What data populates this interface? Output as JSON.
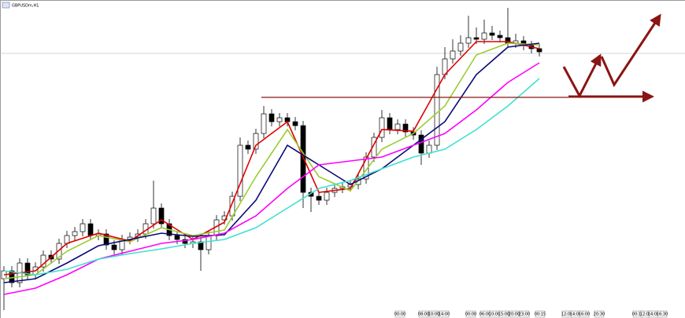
{
  "chart_data": {
    "type": "candlestick",
    "title": "GBPUSDm,H1",
    "open": [
      50,
      60,
      45,
      70,
      55,
      65,
      80,
      75,
      95,
      105,
      110,
      120,
      105,
      107,
      93,
      87,
      100,
      103,
      107,
      120,
      140,
      120,
      105,
      100,
      95,
      97,
      87,
      105,
      125,
      130,
      155,
      220,
      215,
      235,
      260,
      250,
      255,
      250,
      245,
      160,
      155,
      150,
      160,
      165,
      167,
      170,
      177,
      205,
      230,
      255,
      240,
      247,
      237,
      233,
      210,
      220,
      310,
      330,
      340,
      350,
      357,
      355,
      363,
      360,
      357,
      350,
      353,
      347,
      343
    ],
    "high": [
      66,
      66,
      76,
      76,
      71,
      86,
      86,
      101,
      111,
      116,
      126,
      126,
      113,
      113,
      99,
      106,
      109,
      113,
      126,
      175,
      146,
      126,
      111,
      106,
      103,
      103,
      111,
      131,
      136,
      161,
      230,
      226,
      241,
      270,
      266,
      261,
      261,
      256,
      251,
      166,
      161,
      166,
      171,
      173,
      176,
      183,
      211,
      236,
      265,
      261,
      253,
      253,
      243,
      239,
      226,
      320,
      345,
      355,
      360,
      385,
      370,
      380,
      372,
      366,
      395,
      362,
      359,
      353,
      349
    ],
    "low": [
      10,
      39,
      39,
      49,
      49,
      59,
      69,
      69,
      89,
      99,
      104,
      99,
      99,
      87,
      81,
      81,
      94,
      97,
      101,
      114,
      114,
      99,
      94,
      89,
      89,
      60,
      81,
      99,
      119,
      124,
      149,
      209,
      209,
      229,
      244,
      244,
      244,
      239,
      140,
      135,
      144,
      144,
      154,
      159,
      161,
      164,
      171,
      199,
      224,
      234,
      234,
      231,
      227,
      195,
      204,
      214,
      304,
      324,
      334,
      344,
      349,
      349,
      354,
      351,
      344,
      344,
      341,
      337,
      333
    ],
    "close": [
      60,
      45,
      70,
      55,
      65,
      80,
      75,
      95,
      105,
      110,
      120,
      105,
      107,
      93,
      87,
      100,
      103,
      107,
      120,
      140,
      120,
      105,
      100,
      95,
      97,
      87,
      105,
      125,
      130,
      155,
      220,
      215,
      235,
      260,
      250,
      255,
      250,
      245,
      160,
      155,
      150,
      160,
      165,
      167,
      170,
      177,
      205,
      230,
      255,
      240,
      247,
      237,
      233,
      210,
      220,
      310,
      330,
      340,
      350,
      357,
      355,
      363,
      360,
      357,
      350,
      353,
      347,
      343,
      339
    ],
    "series": [
      {
        "color": "#e00000",
        "x": [
          0,
          4,
          8,
          12,
          16,
          20,
          24,
          28,
          32,
          36,
          40,
          44,
          48,
          52,
          56,
          60,
          64,
          68
        ],
        "values": [
          55,
          60,
          95,
          108,
          98,
          125,
          100,
          122,
          220,
          250,
          160,
          165,
          240,
          238,
          310,
          352,
          352,
          343
        ]
      },
      {
        "color": "#9acd32",
        "x": [
          0,
          4,
          8,
          12,
          16,
          20,
          24,
          28,
          32,
          36,
          40,
          44,
          48,
          52,
          56,
          60,
          64,
          68
        ],
        "values": [
          50,
          55,
          85,
          105,
          97,
          115,
          105,
          112,
          180,
          240,
          180,
          162,
          215,
          235,
          270,
          335,
          350,
          348
        ]
      },
      {
        "color": "#0a0a78",
        "x": [
          0,
          4,
          8,
          12,
          16,
          20,
          24,
          28,
          32,
          36,
          40,
          44,
          48,
          52,
          56,
          60,
          64,
          68
        ],
        "values": [
          45,
          50,
          70,
          92,
          100,
          108,
          104,
          106,
          150,
          220,
          195,
          170,
          190,
          220,
          250,
          310,
          345,
          350
        ]
      },
      {
        "color": "#ff00ff",
        "x": [
          0,
          4,
          8,
          12,
          16,
          20,
          24,
          28,
          32,
          36,
          40,
          44,
          48,
          52,
          56,
          60,
          64,
          68
        ],
        "values": [
          30,
          38,
          55,
          75,
          85,
          95,
          100,
          108,
          130,
          165,
          195,
          200,
          205,
          220,
          235,
          265,
          300,
          325
        ]
      },
      {
        "color": "#40e0d0",
        "x": [
          0,
          4,
          8,
          12,
          16,
          20,
          24,
          28,
          32,
          36,
          40,
          44,
          48,
          52,
          56,
          60,
          64,
          68
        ],
        "values": [
          60,
          55,
          62,
          75,
          82,
          88,
          95,
          100,
          115,
          140,
          165,
          175,
          190,
          205,
          215,
          240,
          270,
          305
        ]
      }
    ],
    "xlim": [
      -0.5,
      86.5
    ],
    "ylim": [
      0,
      405
    ],
    "time_labels": [
      "00:00",
      "08:00",
      "10:00",
      "14:00",
      "00:00",
      "06:00",
      "10:00",
      "15:00",
      "20:00",
      "23:00",
      "00:15",
      "12:00",
      "14:00",
      "16:00",
      "20:30",
      "00:15",
      "12:00",
      "14:00",
      "16:30"
    ]
  }
}
